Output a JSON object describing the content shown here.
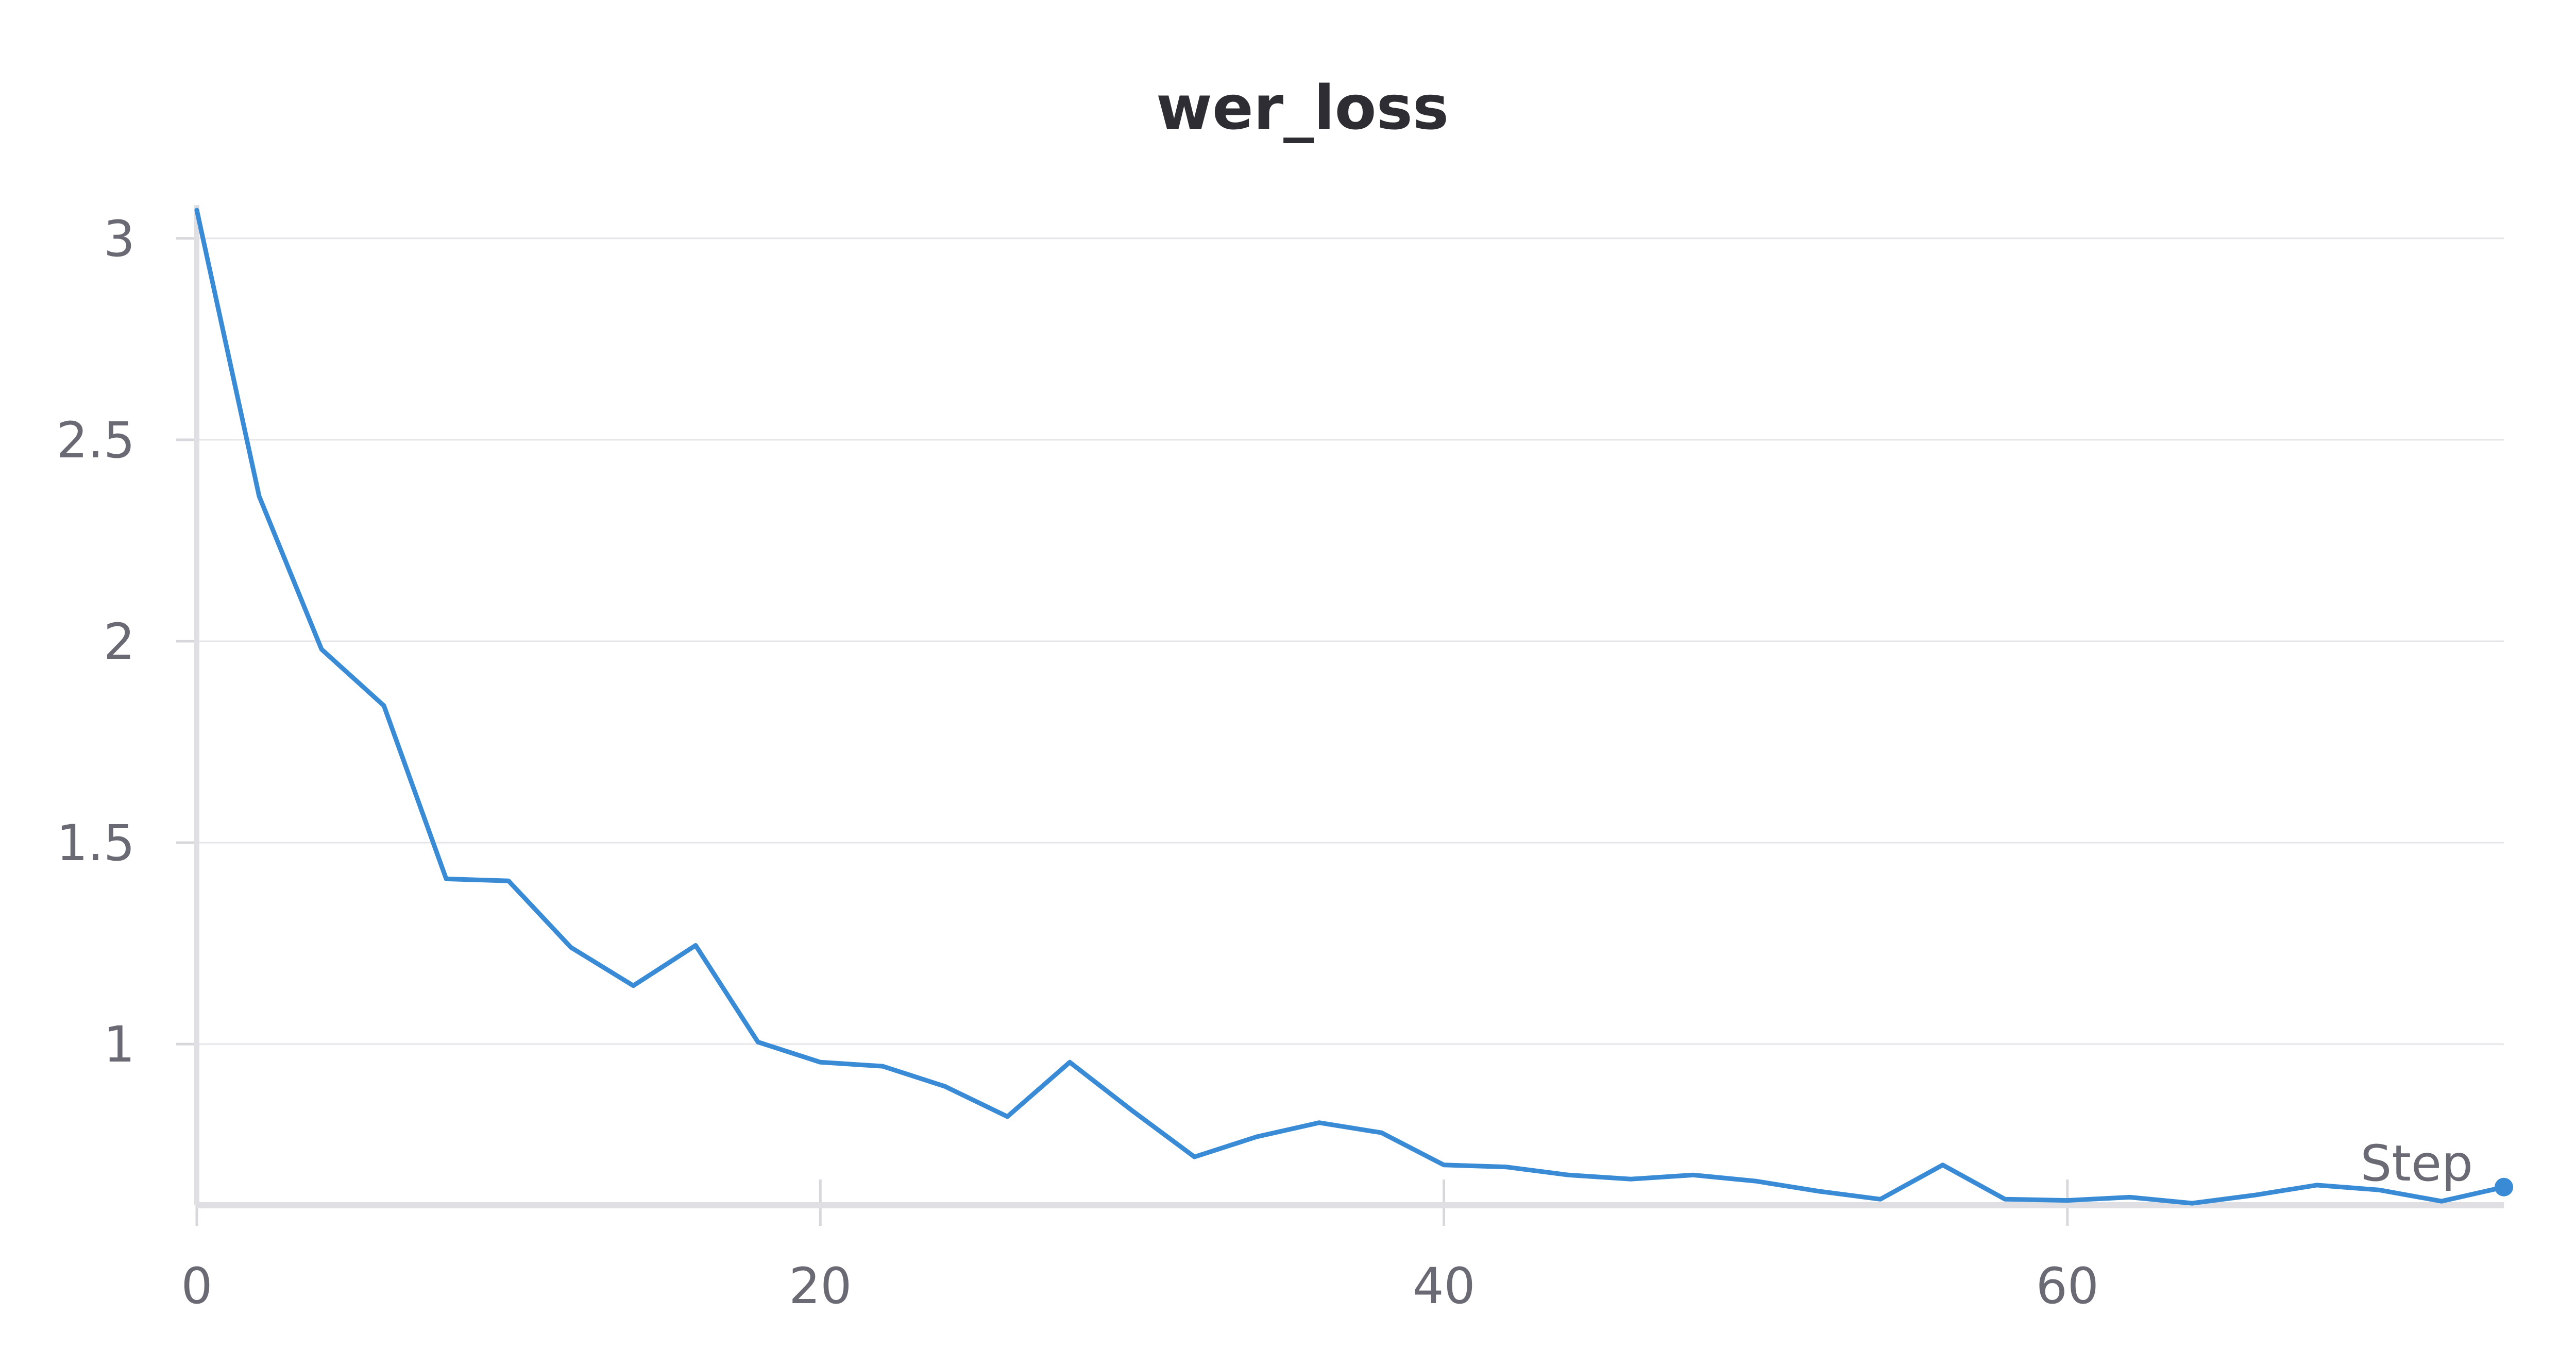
{
  "chart_data": {
    "type": "line",
    "title": "wer_loss",
    "xlabel": "Step",
    "ylabel": "",
    "xlim": [
      0,
      74
    ],
    "ylim": [
      0.6,
      3.07
    ],
    "x_ticks": [
      0,
      20,
      40,
      60
    ],
    "y_ticks": [
      1,
      1.5,
      2,
      2.5,
      3
    ],
    "x_tick_labels": [
      "0",
      "20",
      "40",
      "60"
    ],
    "y_tick_labels": [
      "1",
      "1.5",
      "2",
      "2.5",
      "3"
    ],
    "grid": "horizontal",
    "legend": "none",
    "color": "#3a8bd6",
    "series": [
      {
        "x": [
          0,
          2,
          4,
          6,
          8,
          10,
          12,
          14,
          16,
          18,
          20,
          22,
          24,
          26,
          28,
          30,
          32,
          34,
          36,
          38,
          40,
          42,
          44,
          46,
          48,
          50,
          52,
          54,
          56,
          58,
          60,
          62,
          64,
          66,
          68,
          70,
          72,
          74
        ],
        "values": [
          3.07,
          2.36,
          1.98,
          1.84,
          1.41,
          1.405,
          1.24,
          1.145,
          1.245,
          1.005,
          0.955,
          0.945,
          0.895,
          0.82,
          0.955,
          0.835,
          0.72,
          0.77,
          0.805,
          0.78,
          0.7,
          0.695,
          0.675,
          0.665,
          0.675,
          0.66,
          0.635,
          0.615,
          0.7,
          0.615,
          0.612,
          0.62,
          0.605,
          0.625,
          0.65,
          0.638,
          0.61,
          0.645
        ]
      }
    ]
  }
}
